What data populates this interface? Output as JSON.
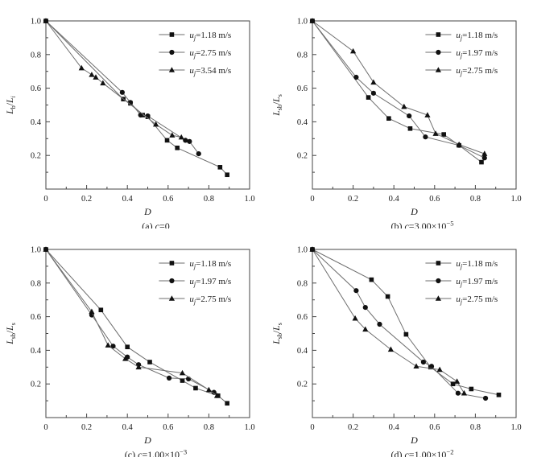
{
  "figure": {
    "background": "#ffffff",
    "text_color": "#1a1a1a",
    "axis_color": "#444444",
    "line_color": "#6e6e6e",
    "marker_color": "#111111"
  },
  "chart_data": [
    {
      "type": "line",
      "id": "a",
      "caption_segments": [
        {
          "t": "(a) "
        },
        {
          "t": "c",
          "i": 1
        },
        {
          "t": "=0"
        }
      ],
      "xlabel_segments": [
        {
          "t": "D",
          "i": 1
        }
      ],
      "ylabel_segments": [
        {
          "t": "L",
          "i": 1
        },
        {
          "t": "b",
          "sub": 1
        },
        {
          "t": "/"
        },
        {
          "t": "L",
          "i": 1
        },
        {
          "t": "i",
          "sub": 1,
          "i2": 1
        }
      ],
      "xlim": [
        0,
        1.0
      ],
      "ylim": [
        0,
        1.0
      ],
      "xticks": {
        "values": [
          0,
          0.2,
          0.4,
          0.6,
          0.8,
          1.0
        ],
        "labels": [
          "0",
          "0.2",
          "0.4",
          "0.6",
          "0.8",
          "1.0"
        ]
      },
      "yticks": {
        "values": [
          0.2,
          0.4,
          0.6,
          0.8,
          1.0
        ],
        "labels": [
          "0.2",
          "0.4",
          "0.6",
          "0.8",
          "1.0"
        ]
      },
      "xminor": [
        0.1,
        0.3,
        0.5,
        0.7,
        0.9
      ],
      "yminor": [
        0.1,
        0.3,
        0.5,
        0.7,
        0.9
      ],
      "legend_position": "top-right",
      "grid": false,
      "series": [
        {
          "marker": "square",
          "label_segments": [
            {
              "t": "u",
              "i": 1
            },
            {
              "t": "j",
              "sub": 1,
              "i2": 1
            },
            {
              "t": "=1.18 m/s"
            }
          ],
          "points": [
            [
              0,
              1.0
            ],
            [
              0.38,
              0.535
            ],
            [
              0.415,
              0.51
            ],
            [
              0.475,
              0.44
            ],
            [
              0.5,
              0.43
            ],
            [
              0.595,
              0.29
            ],
            [
              0.645,
              0.245
            ],
            [
              0.855,
              0.13
            ],
            [
              0.89,
              0.085
            ]
          ]
        },
        {
          "marker": "circle",
          "label_segments": [
            {
              "t": "u",
              "i": 1
            },
            {
              "t": "j",
              "sub": 1,
              "i2": 1
            },
            {
              "t": "=2.75 m/s"
            }
          ],
          "points": [
            [
              0,
              1.0
            ],
            [
              0.375,
              0.575
            ],
            [
              0.415,
              0.515
            ],
            [
              0.465,
              0.44
            ],
            [
              0.5,
              0.435
            ],
            [
              0.685,
              0.29
            ],
            [
              0.705,
              0.283
            ],
            [
              0.75,
              0.21
            ]
          ]
        },
        {
          "marker": "triangle",
          "label_segments": [
            {
              "t": "u",
              "i": 1
            },
            {
              "t": "j",
              "sub": 1,
              "i2": 1
            },
            {
              "t": "=3.54 m/s"
            }
          ],
          "points": [
            [
              0,
              1.0
            ],
            [
              0.175,
              0.72
            ],
            [
              0.225,
              0.68
            ],
            [
              0.245,
              0.665
            ],
            [
              0.28,
              0.63
            ],
            [
              0.54,
              0.385
            ],
            [
              0.62,
              0.32
            ],
            [
              0.665,
              0.308
            ]
          ]
        }
      ]
    },
    {
      "type": "line",
      "id": "b",
      "caption_segments": [
        {
          "t": "(b) "
        },
        {
          "t": "c",
          "i": 1
        },
        {
          "t": "=3.00×10"
        },
        {
          "t": "−5",
          "sup": 1
        }
      ],
      "xlabel_segments": [
        {
          "t": "D",
          "i": 1
        }
      ],
      "ylabel_segments": [
        {
          "t": "L",
          "i": 1
        },
        {
          "t": "sb",
          "sub": 1
        },
        {
          "t": "/"
        },
        {
          "t": "L",
          "i": 1
        },
        {
          "t": "s",
          "sub": 1
        }
      ],
      "xlim": [
        0,
        1.0
      ],
      "ylim": [
        0,
        1.0
      ],
      "xticks": {
        "values": [
          0,
          0.2,
          0.4,
          0.6,
          0.8,
          1.0
        ],
        "labels": [
          "0",
          "0.2",
          "0.4",
          "0.6",
          "0.8",
          "1.0"
        ]
      },
      "yticks": {
        "values": [
          0.2,
          0.4,
          0.6,
          0.8,
          1.0
        ],
        "labels": [
          "0.2",
          "0.4",
          "0.6",
          "0.8",
          "1.0"
        ]
      },
      "xminor": [
        0.1,
        0.3,
        0.5,
        0.7,
        0.9
      ],
      "yminor": [
        0.1,
        0.3,
        0.5,
        0.7,
        0.9
      ],
      "legend_position": "top-right",
      "grid": false,
      "series": [
        {
          "marker": "square",
          "label_segments": [
            {
              "t": "u",
              "i": 1
            },
            {
              "t": "j",
              "sub": 1,
              "i2": 1
            },
            {
              "t": "=1.18 m/s"
            }
          ],
          "points": [
            [
              0,
              1.0
            ],
            [
              0.275,
              0.545
            ],
            [
              0.375,
              0.42
            ],
            [
              0.48,
              0.36
            ],
            [
              0.645,
              0.325
            ],
            [
              0.72,
              0.26
            ],
            [
              0.83,
              0.16
            ]
          ]
        },
        {
          "marker": "circle",
          "label_segments": [
            {
              "t": "u",
              "i": 1
            },
            {
              "t": "j",
              "sub": 1,
              "i2": 1
            },
            {
              "t": "=1.97 m/s"
            }
          ],
          "points": [
            [
              0,
              1.0
            ],
            [
              0.215,
              0.665
            ],
            [
              0.3,
              0.57
            ],
            [
              0.475,
              0.435
            ],
            [
              0.555,
              0.31
            ],
            [
              0.72,
              0.26
            ],
            [
              0.845,
              0.185
            ]
          ]
        },
        {
          "marker": "triangle",
          "label_segments": [
            {
              "t": "u",
              "i": 1
            },
            {
              "t": "j",
              "sub": 1,
              "i2": 1
            },
            {
              "t": "=2.75 m/s"
            }
          ],
          "points": [
            [
              0,
              1.0
            ],
            [
              0.2,
              0.82
            ],
            [
              0.3,
              0.635
            ],
            [
              0.45,
              0.49
            ],
            [
              0.565,
              0.44
            ],
            [
              0.605,
              0.33
            ],
            [
              0.72,
              0.265
            ],
            [
              0.845,
              0.21
            ]
          ]
        }
      ]
    },
    {
      "type": "line",
      "id": "c",
      "caption_segments": [
        {
          "t": "(c) "
        },
        {
          "t": "c",
          "i": 1
        },
        {
          "t": "=1.00×10"
        },
        {
          "t": "−3",
          "sup": 1
        }
      ],
      "xlabel_segments": [
        {
          "t": "D",
          "i": 1
        }
      ],
      "ylabel_segments": [
        {
          "t": "L",
          "i": 1
        },
        {
          "t": "sb",
          "sub": 1
        },
        {
          "t": "/"
        },
        {
          "t": "L",
          "i": 1
        },
        {
          "t": "s",
          "sub": 1
        }
      ],
      "xlim": [
        0,
        1.0
      ],
      "ylim": [
        0,
        1.0
      ],
      "xticks": {
        "values": [
          0,
          0.2,
          0.4,
          0.6,
          0.8,
          1.0
        ],
        "labels": [
          "0",
          "0.2",
          "0.4",
          "0.6",
          "0.8",
          "1.0"
        ]
      },
      "yticks": {
        "values": [
          0.2,
          0.4,
          0.6,
          0.8,
          1.0
        ],
        "labels": [
          "0.2",
          "0.4",
          "0.6",
          "0.8",
          "1.0"
        ]
      },
      "xminor": [
        0.1,
        0.3,
        0.5,
        0.7,
        0.9
      ],
      "yminor": [
        0.1,
        0.3,
        0.5,
        0.7,
        0.9
      ],
      "legend_position": "top-right",
      "grid": false,
      "series": [
        {
          "marker": "square",
          "label_segments": [
            {
              "t": "u",
              "i": 1
            },
            {
              "t": "j",
              "sub": 1,
              "i2": 1
            },
            {
              "t": "=1.18 m/s"
            }
          ],
          "points": [
            [
              0,
              1.0
            ],
            [
              0.27,
              0.64
            ],
            [
              0.4,
              0.42
            ],
            [
              0.51,
              0.33
            ],
            [
              0.67,
              0.22
            ],
            [
              0.735,
              0.175
            ],
            [
              0.845,
              0.13
            ],
            [
              0.89,
              0.085
            ]
          ]
        },
        {
          "marker": "circle",
          "label_segments": [
            {
              "t": "u",
              "i": 1
            },
            {
              "t": "j",
              "sub": 1,
              "i2": 1
            },
            {
              "t": "=1.97 m/s"
            }
          ],
          "points": [
            [
              0,
              1.0
            ],
            [
              0.225,
              0.61
            ],
            [
              0.33,
              0.425
            ],
            [
              0.4,
              0.36
            ],
            [
              0.455,
              0.315
            ],
            [
              0.605,
              0.235
            ],
            [
              0.7,
              0.23
            ],
            [
              0.825,
              0.15
            ]
          ]
        },
        {
          "marker": "triangle",
          "label_segments": [
            {
              "t": "u",
              "i": 1
            },
            {
              "t": "j",
              "sub": 1,
              "i2": 1
            },
            {
              "t": "=2.75 m/s"
            }
          ],
          "points": [
            [
              0,
              1.0
            ],
            [
              0.225,
              0.63
            ],
            [
              0.305,
              0.43
            ],
            [
              0.39,
              0.35
            ],
            [
              0.455,
              0.3
            ],
            [
              0.67,
              0.265
            ],
            [
              0.8,
              0.165
            ],
            [
              0.84,
              0.13
            ]
          ]
        }
      ]
    },
    {
      "type": "line",
      "id": "d",
      "caption_segments": [
        {
          "t": "(d) "
        },
        {
          "t": "c",
          "i": 1
        },
        {
          "t": "=1.00×10"
        },
        {
          "t": "−2",
          "sup": 1
        }
      ],
      "xlabel_segments": [
        {
          "t": "D",
          "i": 1
        }
      ],
      "ylabel_segments": [
        {
          "t": "L",
          "i": 1
        },
        {
          "t": "sb",
          "sub": 1
        },
        {
          "t": "/"
        },
        {
          "t": "L",
          "i": 1
        },
        {
          "t": "s",
          "sub": 1
        }
      ],
      "xlim": [
        0,
        1.0
      ],
      "ylim": [
        0,
        1.0
      ],
      "xticks": {
        "values": [
          0,
          0.2,
          0.4,
          0.6,
          0.8,
          1.0
        ],
        "labels": [
          "0",
          "0.2",
          "0.4",
          "0.6",
          "0.8",
          "1.0"
        ]
      },
      "yticks": {
        "values": [
          0.2,
          0.4,
          0.6,
          0.8,
          1.0
        ],
        "labels": [
          "0.2",
          "0.4",
          "0.6",
          "0.8",
          "1.0"
        ]
      },
      "xminor": [
        0.1,
        0.3,
        0.5,
        0.7,
        0.9
      ],
      "yminor": [
        0.1,
        0.3,
        0.5,
        0.7,
        0.9
      ],
      "legend_position": "top-right",
      "grid": false,
      "series": [
        {
          "marker": "square",
          "label_segments": [
            {
              "t": "u",
              "i": 1
            },
            {
              "t": "j",
              "sub": 1,
              "i2": 1
            },
            {
              "t": "=1.18 m/s"
            }
          ],
          "points": [
            [
              0,
              1.0
            ],
            [
              0.29,
              0.82
            ],
            [
              0.37,
              0.72
            ],
            [
              0.46,
              0.495
            ],
            [
              0.58,
              0.3
            ],
            [
              0.69,
              0.2
            ],
            [
              0.78,
              0.17
            ],
            [
              0.915,
              0.135
            ]
          ]
        },
        {
          "marker": "circle",
          "label_segments": [
            {
              "t": "u",
              "i": 1
            },
            {
              "t": "j",
              "sub": 1,
              "i2": 1
            },
            {
              "t": "=1.97 m/s"
            }
          ],
          "points": [
            [
              0,
              1.0
            ],
            [
              0.215,
              0.755
            ],
            [
              0.26,
              0.655
            ],
            [
              0.33,
              0.555
            ],
            [
              0.545,
              0.33
            ],
            [
              0.585,
              0.305
            ],
            [
              0.715,
              0.145
            ],
            [
              0.85,
              0.115
            ]
          ]
        },
        {
          "marker": "triangle",
          "label_segments": [
            {
              "t": "u",
              "i": 1
            },
            {
              "t": "j",
              "sub": 1,
              "i2": 1
            },
            {
              "t": "=2.75 m/s"
            }
          ],
          "points": [
            [
              0,
              1.0
            ],
            [
              0.21,
              0.59
            ],
            [
              0.26,
              0.525
            ],
            [
              0.385,
              0.405
            ],
            [
              0.51,
              0.305
            ],
            [
              0.625,
              0.285
            ],
            [
              0.71,
              0.215
            ],
            [
              0.745,
              0.145
            ]
          ]
        }
      ]
    }
  ]
}
